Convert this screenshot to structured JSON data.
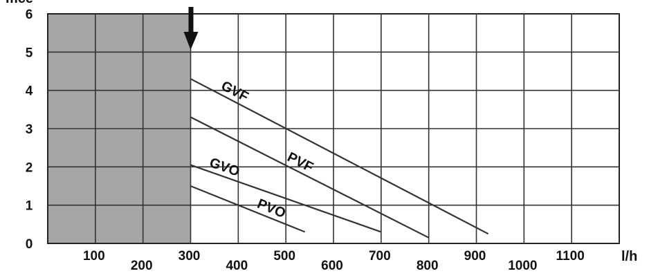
{
  "chart_data": {
    "type": "line",
    "ylabel": "mce",
    "xunit": "l/h",
    "xlim": [
      0,
      1200
    ],
    "ylim": [
      0,
      6
    ],
    "x_ticks": [
      100,
      200,
      300,
      400,
      500,
      600,
      700,
      800,
      900,
      1000,
      1100
    ],
    "y_ticks": [
      0,
      1,
      2,
      3,
      4,
      5,
      6
    ],
    "grid": true,
    "shaded_region": {
      "from": 0,
      "to": 300,
      "color": "#a6a6a6"
    },
    "marker": {
      "type": "arrow-down",
      "x": 300
    },
    "series": [
      {
        "name": "GVF",
        "x": [
          300,
          925
        ],
        "values": [
          4.3,
          0.25
        ]
      },
      {
        "name": "PVF",
        "x": [
          300,
          800
        ],
        "values": [
          3.3,
          0.15
        ]
      },
      {
        "name": "GVO",
        "x": [
          300,
          700
        ],
        "values": [
          2.05,
          0.3
        ]
      },
      {
        "name": "PVO",
        "x": [
          300,
          540
        ],
        "values": [
          1.5,
          0.3
        ]
      }
    ]
  }
}
